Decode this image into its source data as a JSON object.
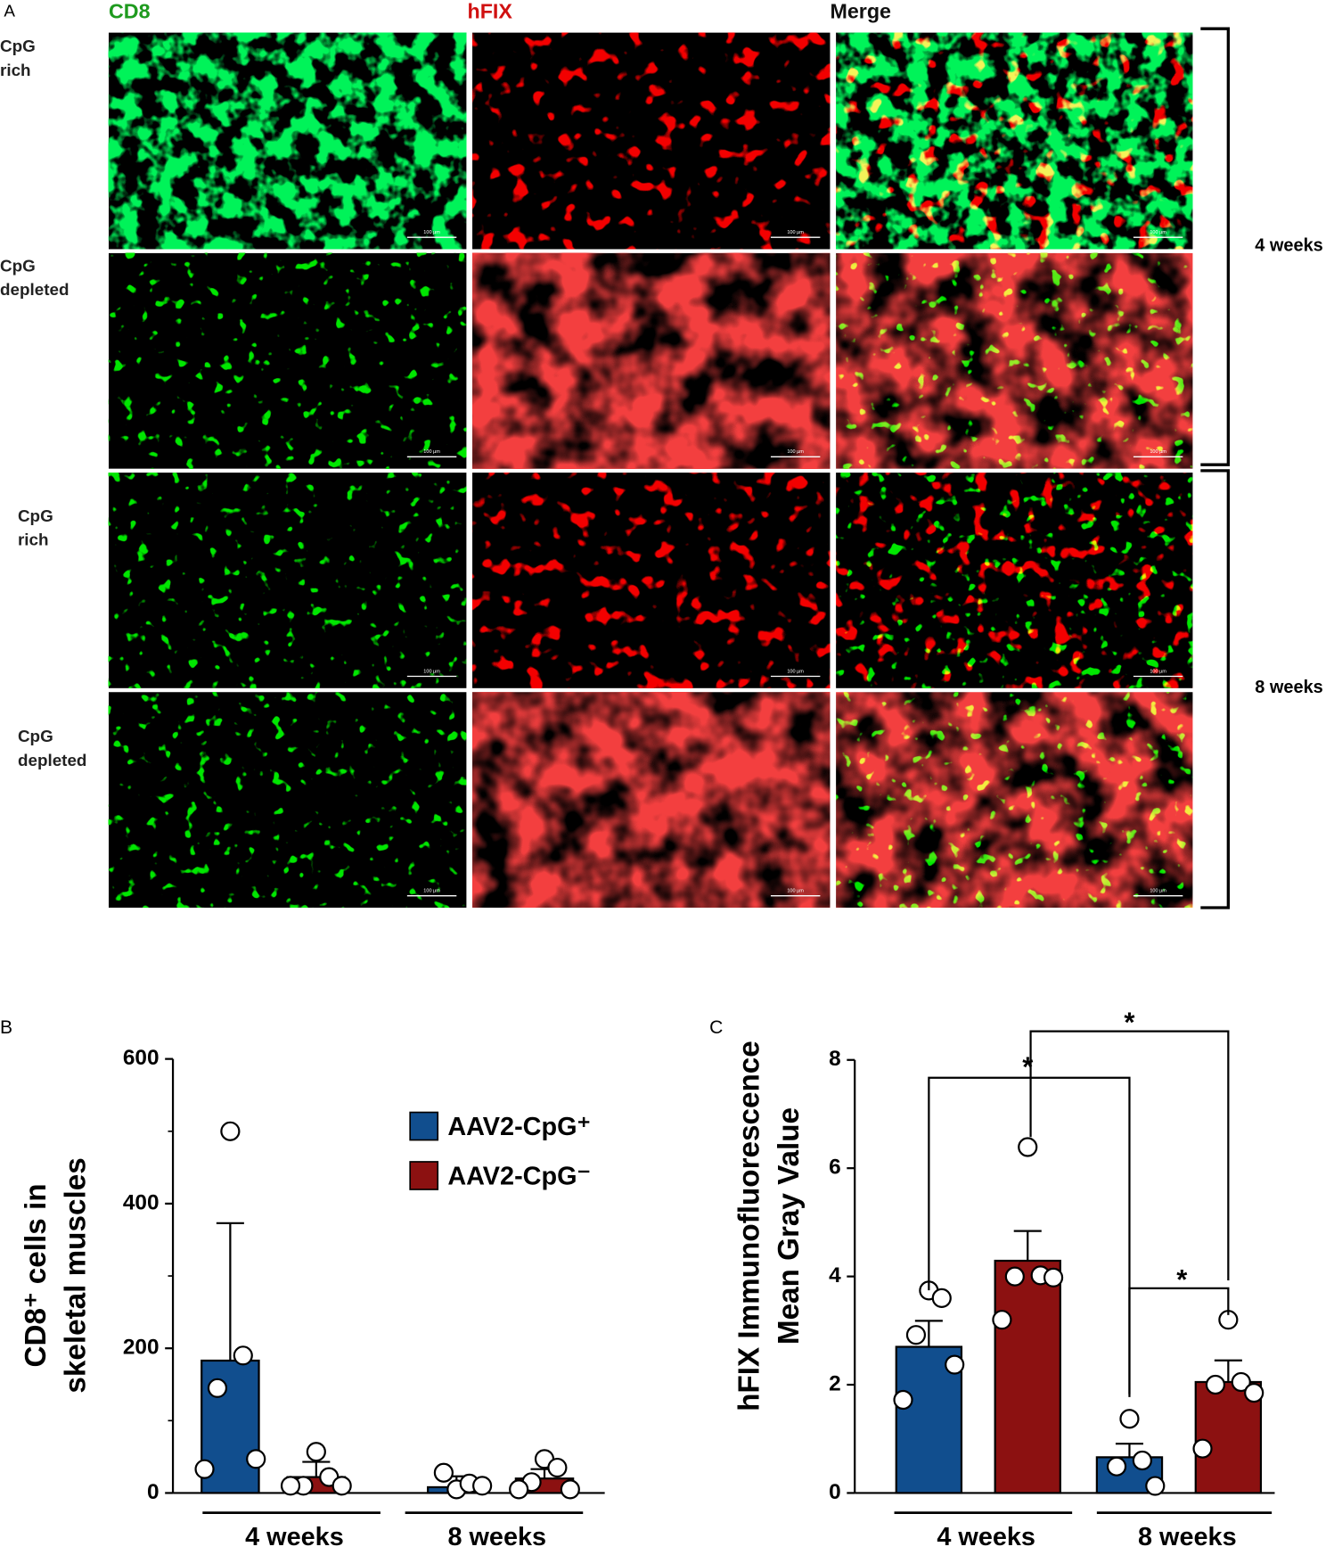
{
  "panel_labels": [
    "A",
    "B",
    "C"
  ],
  "panel_a": {
    "column_titles": [
      "CD8",
      "hFIX",
      "Merge"
    ],
    "row_labels": [
      [
        "CpG",
        "rich"
      ],
      [
        "CpG",
        "depleted"
      ],
      [
        "CpG",
        "rich"
      ],
      [
        "CpG",
        "depleted"
      ]
    ],
    "timepoints": [
      "4 weeks",
      "8 weeks"
    ],
    "scale_bar_label": "100 µm"
  },
  "chart_data": [
    {
      "type": "bar",
      "ylabel": [
        "CD8⁺ cells in",
        "skeletal muscles"
      ],
      "categories": [
        "4 weeks",
        "8 weeks"
      ],
      "series": [
        {
          "name": "AAV2-CpG⁺",
          "color": "#114e8e",
          "values": [
            183,
            8
          ],
          "errors": [
            190,
            15
          ],
          "points": [
            [
              500,
              190,
              145,
              47,
              33
            ],
            [
              5,
              13,
              28,
              10
            ]
          ]
        },
        {
          "name": "AAV2-CpG⁻",
          "color": "#8c1111",
          "values": [
            22,
            20
          ],
          "errors": [
            21,
            13
          ],
          "points": [
            [
              57,
              22,
              10,
              10,
              10
            ],
            [
              47,
              35,
              15,
              5,
              5
            ]
          ]
        }
      ],
      "ylim": [
        0,
        600
      ],
      "yticks": [
        0,
        200,
        400,
        600
      ],
      "yminorticks": [
        100,
        300,
        500
      ],
      "legend": "top-right"
    },
    {
      "type": "bar",
      "ylabel": [
        "hFIX Immunofluorescence",
        "Mean Gray Value"
      ],
      "categories": [
        "4 weeks",
        "8 weeks"
      ],
      "series": [
        {
          "name": "AAV2-CpG⁺",
          "color": "#114e8e",
          "values": [
            2.7,
            0.66
          ],
          "errors": [
            0.48,
            0.25
          ],
          "points": [
            [
              3.74,
              3.6,
              2.92,
              2.37,
              1.72
            ],
            [
              1.37,
              0.6,
              0.49,
              0.13
            ]
          ]
        },
        {
          "name": "AAV2-CpG⁻",
          "color": "#8c1111",
          "values": [
            4.29,
            2.05
          ],
          "errors": [
            0.55,
            0.4
          ],
          "points": [
            [
              6.39,
              4.02,
              4.0,
              3.98,
              3.2
            ],
            [
              3.2,
              2.05,
              2.0,
              1.85,
              0.82
            ]
          ]
        }
      ],
      "ylim": [
        0,
        8
      ],
      "yticks": [
        0,
        2,
        4,
        6,
        8
      ],
      "annotations": [
        "*",
        "*",
        "*"
      ]
    }
  ]
}
